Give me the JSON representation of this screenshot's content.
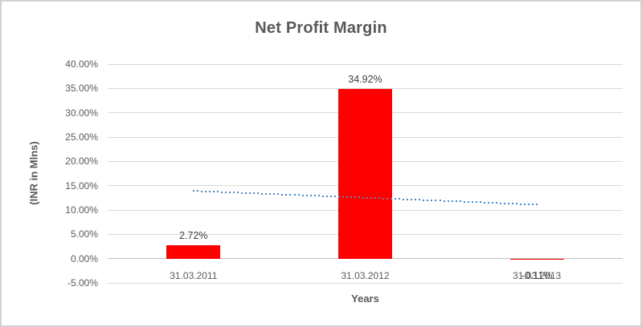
{
  "chart_data": {
    "type": "bar",
    "title": "Net Profit Margin",
    "xlabel": "Years",
    "ylabel": "(INR in Mlns)",
    "categories": [
      "31.03.2011",
      "31.03.2012",
      "31.03.2013"
    ],
    "values": [
      2.72,
      34.92,
      -0.11
    ],
    "data_labels": [
      "2.72%",
      "34.92%",
      "-0.11%"
    ],
    "ylim": [
      -5,
      40
    ],
    "yticks": [
      40,
      35,
      30,
      25,
      20,
      15,
      10,
      5,
      0,
      -5
    ],
    "ytick_labels": [
      "40.00%",
      "35.00%",
      "30.00%",
      "25.00%",
      "20.00%",
      "15.00%",
      "10.00%",
      "5.00%",
      "0.00%",
      "-5.00%"
    ],
    "grid": true,
    "legend": "none",
    "bar_color": "#ff0000",
    "trendline": {
      "style": "dotted",
      "color": "#4a89c8",
      "start_value": 13.93,
      "end_value": 11.1
    },
    "colors": {
      "title_text": "#595959",
      "axis_text": "#595959",
      "data_label_text": "#404040",
      "gridline": "#d9d9d9",
      "axis_line": "#bfbfbf",
      "frame_border": "#d2d2d2"
    }
  }
}
